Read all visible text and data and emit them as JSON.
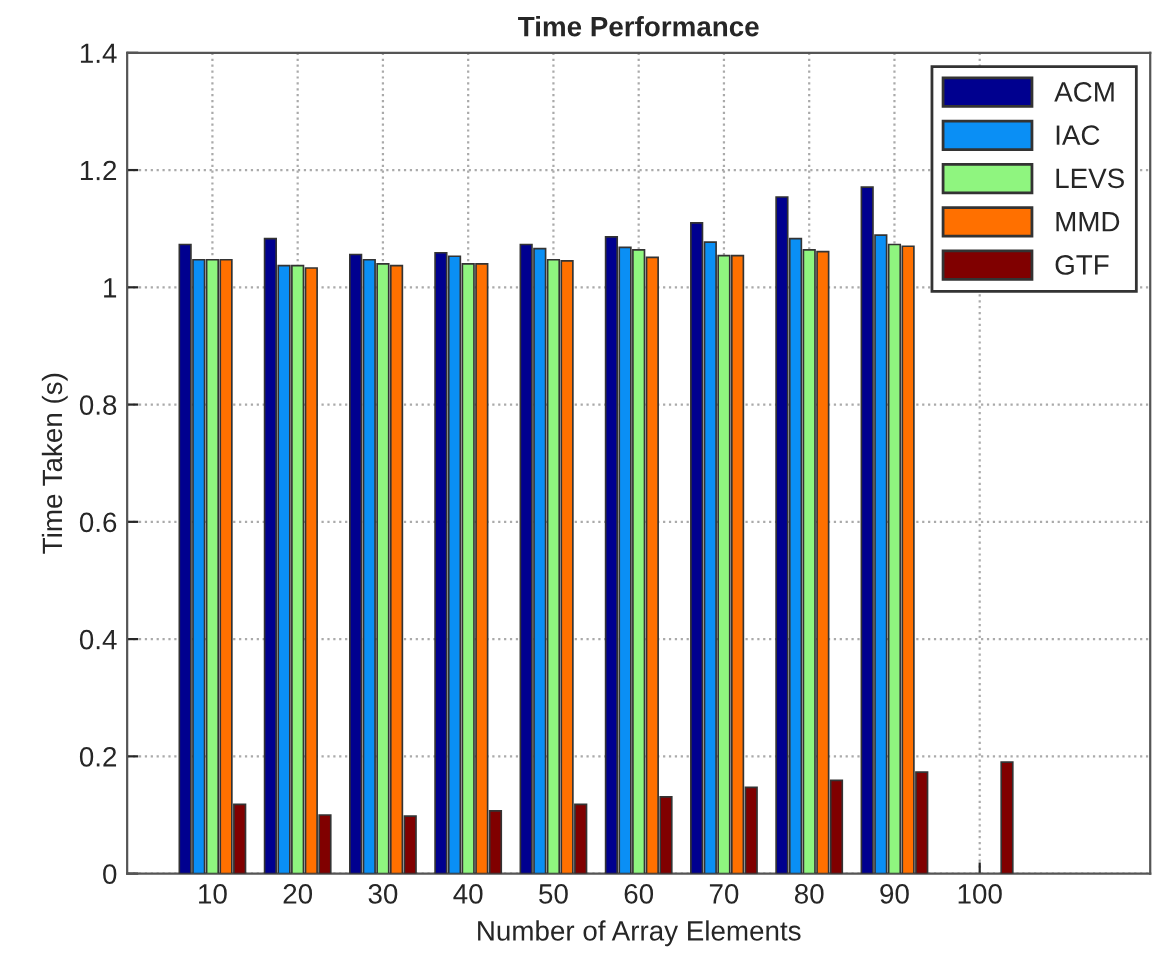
{
  "chart_data": {
    "type": "bar",
    "title": "Time Performance",
    "xlabel": "Number of Array Elements",
    "ylabel": "Time Taken (s)",
    "x": [
      10,
      20,
      30,
      40,
      50,
      60,
      70,
      80,
      90,
      100
    ],
    "xlim": [
      0,
      120
    ],
    "xticks": [
      10,
      20,
      30,
      40,
      50,
      60,
      70,
      80,
      90,
      100
    ],
    "ylim": [
      0,
      1.4
    ],
    "yticks": [
      0,
      0.2,
      0.4,
      0.6,
      0.8,
      1,
      1.2,
      1.4
    ],
    "grid": true,
    "legend": "top right",
    "series": [
      {
        "name": "ACM",
        "color": "#00008f",
        "values": [
          1.073,
          1.083,
          1.056,
          1.059,
          1.073,
          1.086,
          1.11,
          1.154,
          1.171,
          null
        ]
      },
      {
        "name": "IAC",
        "color": "#0a8ff5",
        "values": [
          1.047,
          1.037,
          1.047,
          1.053,
          1.066,
          1.068,
          1.077,
          1.083,
          1.089,
          null
        ]
      },
      {
        "name": "LEVS",
        "color": "#8ff57f",
        "values": [
          1.047,
          1.037,
          1.04,
          1.04,
          1.047,
          1.064,
          1.054,
          1.064,
          1.073,
          null
        ]
      },
      {
        "name": "MMD",
        "color": "#ff7000",
        "values": [
          1.047,
          1.033,
          1.037,
          1.04,
          1.045,
          1.051,
          1.054,
          1.061,
          1.07,
          null
        ]
      },
      {
        "name": "GTF",
        "color": "#800000",
        "values": [
          0.118,
          0.1,
          0.098,
          0.107,
          0.118,
          0.131,
          0.147,
          0.159,
          0.173,
          0.19
        ]
      }
    ]
  }
}
